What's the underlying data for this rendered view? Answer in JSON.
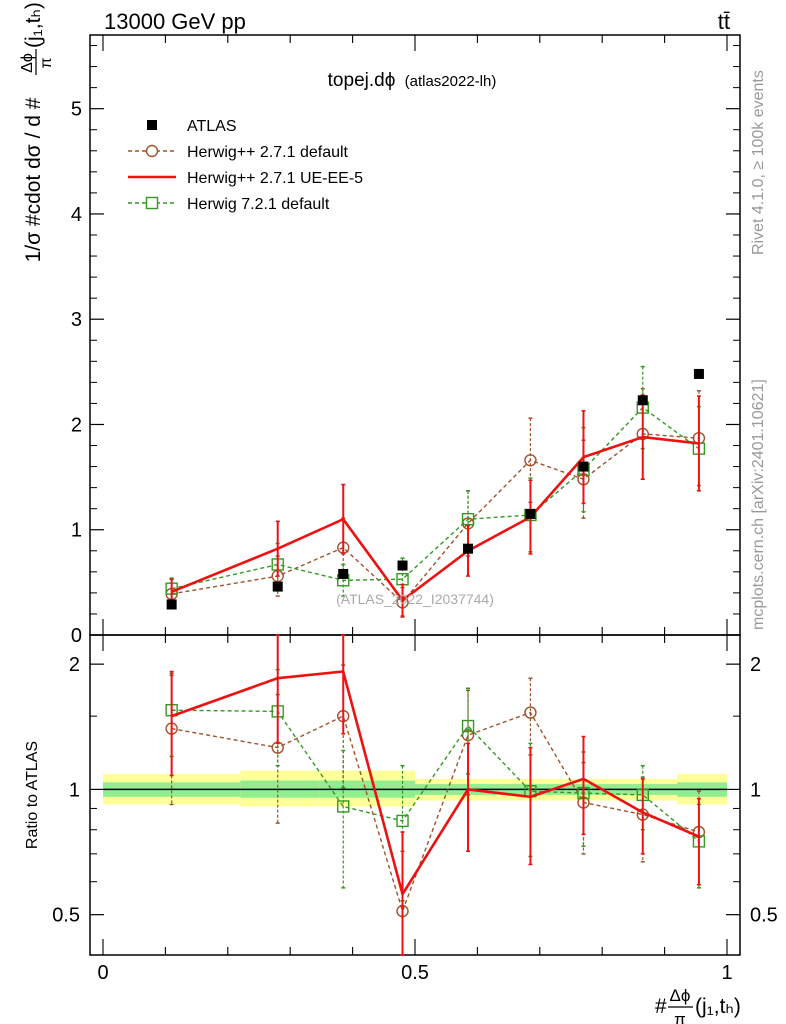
{
  "header": {
    "left": "13000 GeV pp",
    "right": "tt̄"
  },
  "side_labels": {
    "rivet": "Rivet 4.1.0, ≥ 100k events",
    "mcplots": "mcplots.cern.ch [arXiv:2401.10621]"
  },
  "chart_data": [
    {
      "type": "line",
      "title": "topej.dϕ",
      "subtitle": "(atlas2022-lh)",
      "watermark": "(ATLAS_2022_I2037744)",
      "xlabel": "#Δϕ/π(j₁,tₕ)",
      "ylabel": "1/σ #cdot dσ / d #Δϕ/π(j₁,tₕ)",
      "ylabel_parts": {
        "lead": "1/σ #cdot dσ / d #",
        "frac_num": "Δϕ",
        "frac_den": "π",
        "tail": "(j₁,tₕ)"
      },
      "xlim": [
        0,
        1
      ],
      "ylim": [
        0,
        5.7
      ],
      "grid": false,
      "legend_position": "top-left",
      "y_tick_labels": [
        "0",
        "1",
        "2",
        "3",
        "4",
        "5"
      ],
      "x": [
        0.11,
        0.28,
        0.385,
        0.48,
        0.585,
        0.685,
        0.77,
        0.865,
        0.955
      ],
      "series": [
        {
          "name": "ATLAS",
          "style": "data",
          "color": "#000000",
          "values": [
            0.29,
            0.46,
            0.58,
            0.66,
            0.82,
            1.15,
            1.6,
            2.23,
            2.48
          ],
          "errors": [
            0.02,
            0.02,
            0.02,
            0.02,
            0.02,
            0.02,
            0.03,
            0.04,
            0.04
          ]
        },
        {
          "name": "Herwig++ 2.7.1 default",
          "style": "dashed-circle",
          "color": "#a0522d",
          "values": [
            0.39,
            0.56,
            0.83,
            0.31,
            1.06,
            1.66,
            1.48,
            1.91,
            1.87
          ],
          "errors": [
            0.14,
            0.19,
            0.28,
            0.14,
            0.31,
            0.4,
            0.37,
            0.43,
            0.45
          ]
        },
        {
          "name": "Herwig++ 2.7.1 UE-EE-5",
          "style": "solid",
          "color": "#ee1111",
          "values": [
            0.41,
            0.82,
            1.1,
            0.33,
            0.8,
            1.12,
            1.69,
            1.88,
            1.82
          ],
          "errors": [
            0.12,
            0.26,
            0.33,
            0.15,
            0.24,
            0.35,
            0.44,
            0.4,
            0.45
          ]
        },
        {
          "name": "Herwig 7.2.1 default",
          "style": "dashed-square",
          "color": "#339922",
          "values": [
            0.44,
            0.67,
            0.52,
            0.53,
            1.1,
            1.14,
            1.57,
            2.16,
            1.77
          ],
          "errors": [
            0.1,
            0.2,
            0.15,
            0.2,
            0.27,
            0.35,
            0.4,
            0.39,
            0.4
          ]
        }
      ]
    },
    {
      "type": "line",
      "ylabel": "Ratio to ATLAS",
      "xlabel": "#Δϕ/π(j₁,tₕ)",
      "xlabel_parts": {
        "lead": "#",
        "frac_num": "Δϕ",
        "frac_den": "π",
        "tail": "(j₁,tₕ)"
      },
      "xlim": [
        0,
        1
      ],
      "ylim": [
        0.4,
        2.35
      ],
      "yscale": "log",
      "reference_line": 1,
      "y_ticks": [
        {
          "value": 0.5,
          "label": "0.5"
        },
        {
          "value": 1,
          "label": "1"
        },
        {
          "value": 2,
          "label": "2"
        }
      ],
      "x_ticks": [
        {
          "value": 0,
          "label": "0"
        },
        {
          "value": 0.5,
          "label": "0.5"
        },
        {
          "value": 1,
          "label": "1"
        }
      ],
      "uncertainty_bands": {
        "bin_edges": [
          0,
          0.22,
          0.345,
          0.5,
          0.92,
          1
        ],
        "inner": [
          [
            0.96,
            1.04
          ],
          [
            0.955,
            1.05
          ],
          [
            0.955,
            1.05
          ],
          [
            0.97,
            1.03
          ],
          [
            0.96,
            1.04
          ]
        ],
        "outer": [
          [
            0.92,
            1.09
          ],
          [
            0.91,
            1.11
          ],
          [
            0.91,
            1.11
          ],
          [
            0.94,
            1.06
          ],
          [
            0.92,
            1.09
          ]
        ],
        "inner_color": "#90ee90",
        "outer_color": "#ffff99"
      },
      "x": [
        0.11,
        0.28,
        0.385,
        0.48,
        0.585,
        0.685,
        0.77,
        0.865,
        0.955
      ],
      "series": [
        {
          "name": "Herwig++ 2.7.1 default",
          "color": "#a0522d",
          "style": "dashed-circle",
          "values": [
            1.4,
            1.26,
            1.5,
            0.51,
            1.35,
            1.53,
            0.93,
            0.87,
            0.79
          ],
          "errors": [
            0.48,
            0.43,
            0.49,
            0.2,
            0.38,
            0.32,
            0.23,
            0.2,
            0.2
          ]
        },
        {
          "name": "Herwig++ 2.7.1 UE-EE-5",
          "color": "#ee1111",
          "style": "solid",
          "values": [
            1.5,
            1.85,
            1.92,
            0.56,
            1.0,
            0.96,
            1.06,
            0.88,
            0.77
          ],
          "errors": [
            0.42,
            0.56,
            0.56,
            0.23,
            0.29,
            0.3,
            0.28,
            0.18,
            0.18
          ]
        },
        {
          "name": "Herwig 7.2.1 default",
          "color": "#339922",
          "style": "dashed-square",
          "values": [
            1.55,
            1.54,
            0.91,
            0.84,
            1.42,
            0.99,
            0.98,
            0.97,
            0.75
          ],
          "errors": [
            0.35,
            0.4,
            0.33,
            0.3,
            0.33,
            0.3,
            0.25,
            0.17,
            0.17
          ]
        }
      ]
    }
  ]
}
